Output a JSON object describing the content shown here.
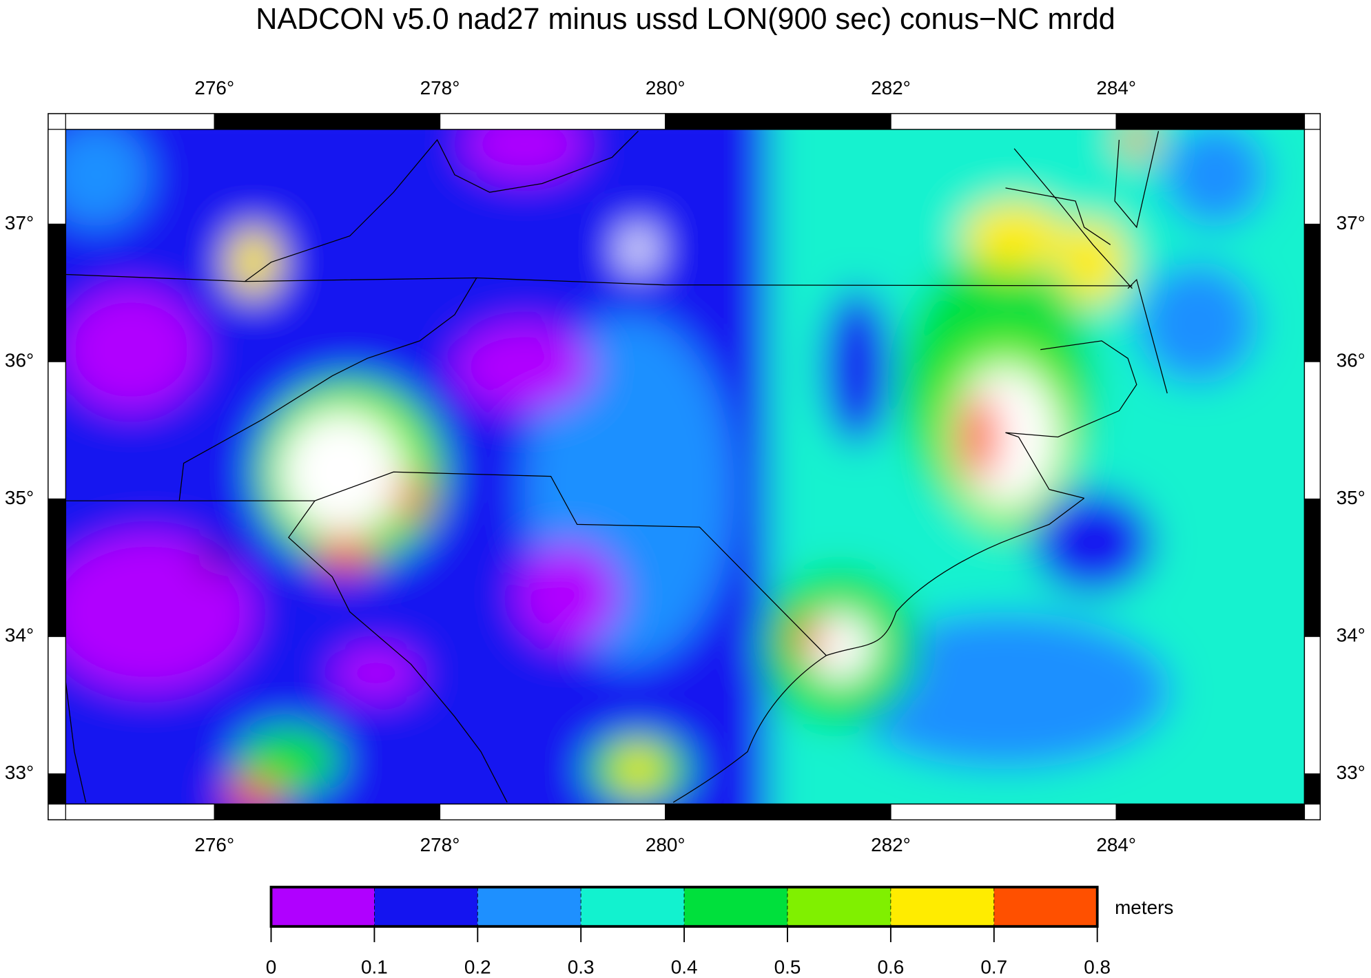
{
  "map": {
    "title": "NADCON v5.0 nad27 minus ussd LON(900 sec) conus−NC mrdd",
    "xlim": [
      274.68,
      285.67
    ],
    "ylim": [
      32.78,
      37.69
    ],
    "xticks": [
      {
        "value": 276,
        "label": "276°"
      },
      {
        "value": 278,
        "label": "278°"
      },
      {
        "value": 280,
        "label": "280°"
      },
      {
        "value": 282,
        "label": "282°"
      },
      {
        "value": 284,
        "label": "284°"
      }
    ],
    "yticks": [
      {
        "value": 33,
        "label": "33°"
      },
      {
        "value": 34,
        "label": "34°"
      },
      {
        "value": 35,
        "label": "35°"
      },
      {
        "value": 36,
        "label": "36°"
      },
      {
        "value": 37,
        "label": "37°"
      }
    ],
    "colorbar": {
      "ticks": [
        0,
        0.1,
        0.2,
        0.3,
        0.4,
        0.5,
        0.6,
        0.7,
        0.8
      ],
      "colors": [
        "#b000ff",
        "#1414f0",
        "#1e90ff",
        "#12f2cf",
        "#00e03c",
        "#80f000",
        "#ffec00",
        "#ff5000"
      ],
      "unit": "meters"
    }
  }
}
